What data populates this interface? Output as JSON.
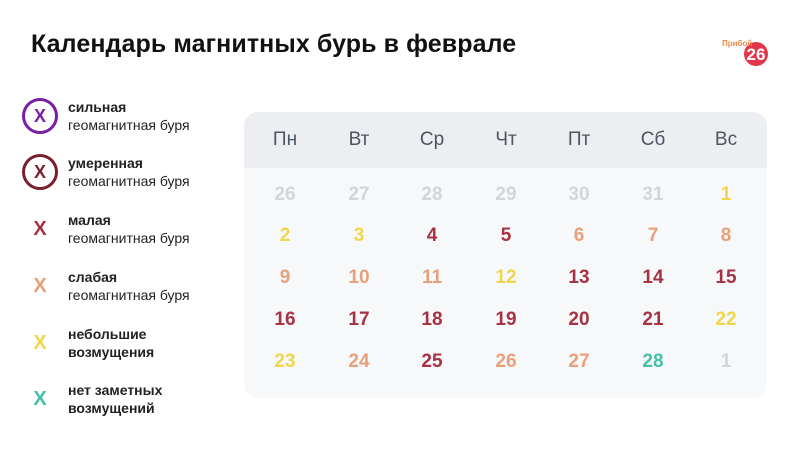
{
  "title": "Календарь магнитных бурь в феврале",
  "logo": {
    "brand": "Прибой",
    "number": "26",
    "colors": [
      "#e2374a",
      "#f08a4b"
    ]
  },
  "legend": [
    {
      "mark": "X",
      "style": "circled",
      "color": "#7b1fa2",
      "line1": "сильная",
      "line2": "геомагнитная буря"
    },
    {
      "mark": "X",
      "style": "circled",
      "color": "#7a1f2b",
      "line1": "умеренная",
      "line2": "геомагнитная буря"
    },
    {
      "mark": "X",
      "style": "plain",
      "color": "#a63343",
      "line1": "малая",
      "line2": "геомагнитная буря"
    },
    {
      "mark": "X",
      "style": "plain",
      "color": "#e8a07a",
      "line1": "слабая",
      "line2": "геомагнитная буря"
    },
    {
      "mark": "X",
      "style": "plain",
      "color": "#f0d64a",
      "line1": "небольшие",
      "line2": "возмущения",
      "bold_both": true
    },
    {
      "mark": "X",
      "style": "plain",
      "color": "#45c0a8",
      "line1": "нет заметных",
      "line2": "возмущений",
      "bold_both": true
    }
  ],
  "calendar": {
    "weekdays": [
      "Пн",
      "Вт",
      "Ср",
      "Чт",
      "Пт",
      "Сб",
      "Вс"
    ],
    "weeks": [
      [
        {
          "day": "26",
          "level": "out"
        },
        {
          "day": "27",
          "level": "out"
        },
        {
          "day": "28",
          "level": "out"
        },
        {
          "day": "29",
          "level": "out"
        },
        {
          "day": "30",
          "level": "out"
        },
        {
          "day": "31",
          "level": "out"
        },
        {
          "day": "1",
          "level": "small_disturbance"
        }
      ],
      [
        {
          "day": "2",
          "level": "small_disturbance"
        },
        {
          "day": "3",
          "level": "small_disturbance"
        },
        {
          "day": "4",
          "level": "minor_storm"
        },
        {
          "day": "5",
          "level": "minor_storm"
        },
        {
          "day": "6",
          "level": "weak_storm"
        },
        {
          "day": "7",
          "level": "weak_storm"
        },
        {
          "day": "8",
          "level": "weak_storm"
        }
      ],
      [
        {
          "day": "9",
          "level": "weak_storm"
        },
        {
          "day": "10",
          "level": "weak_storm"
        },
        {
          "day": "11",
          "level": "weak_storm"
        },
        {
          "day": "12",
          "level": "small_disturbance"
        },
        {
          "day": "13",
          "level": "minor_storm"
        },
        {
          "day": "14",
          "level": "minor_storm"
        },
        {
          "day": "15",
          "level": "minor_storm"
        }
      ],
      [
        {
          "day": "16",
          "level": "minor_storm"
        },
        {
          "day": "17",
          "level": "minor_storm"
        },
        {
          "day": "18",
          "level": "minor_storm"
        },
        {
          "day": "19",
          "level": "minor_storm"
        },
        {
          "day": "20",
          "level": "minor_storm"
        },
        {
          "day": "21",
          "level": "minor_storm"
        },
        {
          "day": "22",
          "level": "small_disturbance"
        }
      ],
      [
        {
          "day": "23",
          "level": "small_disturbance"
        },
        {
          "day": "24",
          "level": "weak_storm"
        },
        {
          "day": "25",
          "level": "minor_storm"
        },
        {
          "day": "26",
          "level": "weak_storm"
        },
        {
          "day": "27",
          "level": "weak_storm"
        },
        {
          "day": "28",
          "level": "no_disturbance"
        },
        {
          "day": "1",
          "level": "out"
        }
      ]
    ],
    "level_colors": {
      "out": "#d2d5da",
      "small_disturbance": "#f0d64a",
      "weak_storm": "#e8a07a",
      "minor_storm": "#a63343",
      "no_disturbance": "#45c0a8"
    }
  }
}
